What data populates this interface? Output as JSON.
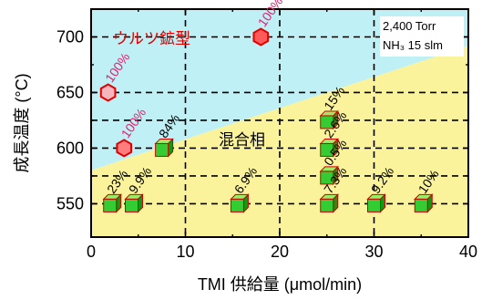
{
  "chart_data": {
    "type": "scatter",
    "title": "",
    "xlabel": "TMI 供給量 (μmol/min)",
    "ylabel": "成長温度 (°C)",
    "xlim": [
      0,
      40
    ],
    "ylim": [
      520,
      725
    ],
    "x_ticks": [
      "0",
      "10",
      "20",
      "30",
      "40"
    ],
    "y_ticks": [
      "550",
      "600",
      "650",
      "700"
    ],
    "grid": "dashed",
    "conditions": [
      "2,400 Torr",
      "NH₃ 15 slm"
    ],
    "regions": [
      {
        "name": "ウルツ鉱型",
        "color": "#bff0f5"
      },
      {
        "name": "混合相",
        "color": "#fbf39b"
      }
    ],
    "boundary": {
      "x": [
        0,
        40
      ],
      "y": [
        580,
        692
      ]
    },
    "series": [
      {
        "name": "ウルツ鉱型",
        "marker": "hexagon",
        "points": [
          {
            "x": 18,
            "y": 700,
            "label": "100%",
            "fill": "#ff5a5a"
          },
          {
            "x": 1.8,
            "y": 650,
            "label": "100%",
            "fill": "#f6b6be"
          },
          {
            "x": 3.5,
            "y": 600,
            "label": "100%",
            "fill": "#ff7d7d"
          }
        ]
      },
      {
        "name": "混合相",
        "marker": "cube",
        "points": [
          {
            "x": 7.5,
            "y": 600,
            "label": "84%"
          },
          {
            "x": 2,
            "y": 550,
            "label": "23%"
          },
          {
            "x": 4.3,
            "y": 550,
            "label": "9.9%"
          },
          {
            "x": 15.5,
            "y": 550,
            "label": "6.9%"
          },
          {
            "x": 25,
            "y": 625,
            "label": "15%"
          },
          {
            "x": 25,
            "y": 600,
            "label": "2.6%"
          },
          {
            "x": 25,
            "y": 575,
            "label": "0.5%"
          },
          {
            "x": 25,
            "y": 550,
            "label": "7.3%"
          },
          {
            "x": 30,
            "y": 550,
            "label": "9.2%"
          },
          {
            "x": 35,
            "y": 550,
            "label": "10%"
          }
        ]
      }
    ],
    "colors": {
      "hex_stroke": "#e00000",
      "cube_face": "#33cc33",
      "cube_top": "#99ee66",
      "cube_side": "#119911",
      "cube_stroke": "#cc0000",
      "label_magenta": "#e0206e",
      "region_label_red": "#e00000"
    }
  }
}
